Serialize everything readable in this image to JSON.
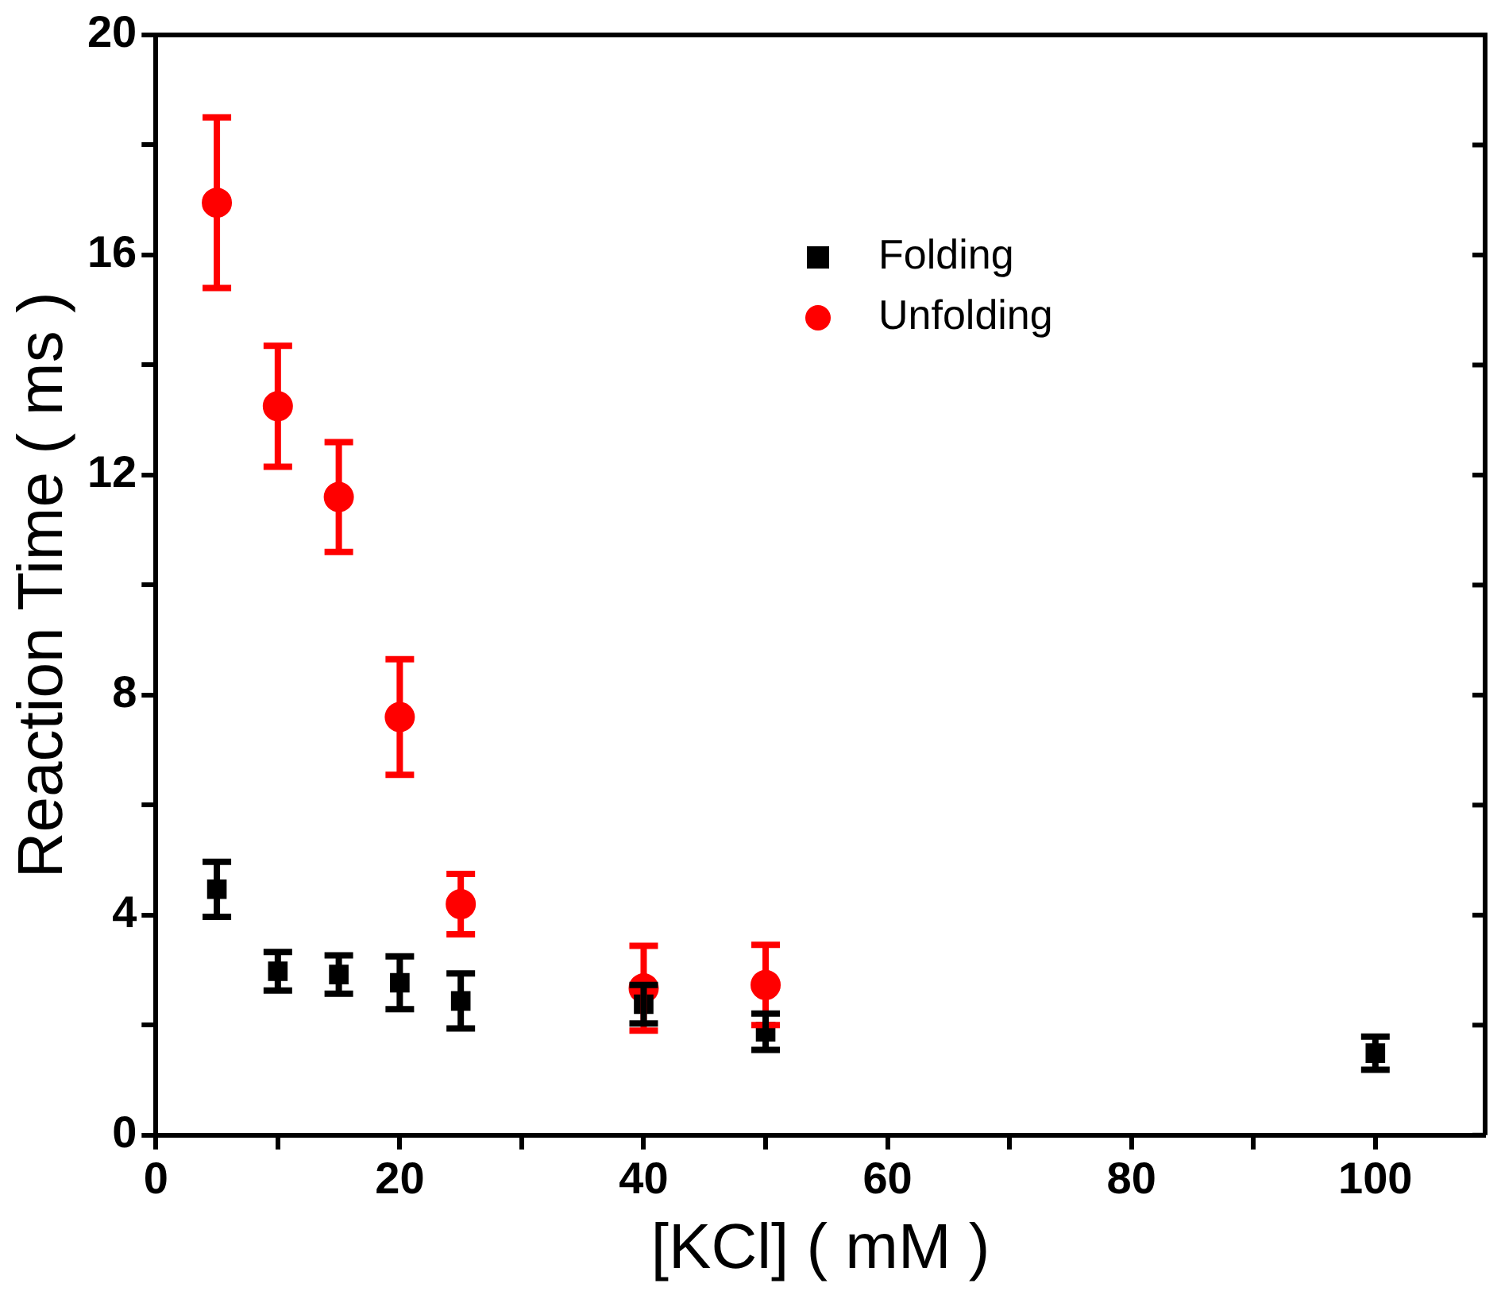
{
  "chart_data": {
    "type": "scatter",
    "xlabel": "[KCl] ( mM )",
    "ylabel": "Reaction Time ( ms )",
    "xlim": [
      0,
      109
    ],
    "xticks": [
      0,
      {
        "value": 10,
        "label": null
      },
      20,
      {
        "value": 30,
        "label": null
      },
      40,
      {
        "value": 50,
        "label": null
      },
      60,
      {
        "value": 70,
        "label": null
      },
      80,
      {
        "value": 90,
        "label": null
      },
      100
    ],
    "ylim": [
      0,
      20
    ],
    "yticks": [
      0,
      {
        "value": 2,
        "label": null
      },
      4,
      {
        "value": 6,
        "label": null
      },
      8,
      {
        "value": 10,
        "label": null
      },
      12,
      {
        "value": 14,
        "label": null
      },
      16,
      {
        "value": 18,
        "label": null
      },
      20
    ],
    "legend": "top right",
    "grid": false,
    "series": [
      {
        "name": "Folding",
        "color": "#000000",
        "marker": "square",
        "x": [
          5,
          10,
          15,
          20,
          25,
          40,
          50,
          100
        ],
        "values": [
          4.47,
          2.98,
          2.92,
          2.77,
          2.44,
          2.38,
          1.88,
          1.49
        ],
        "errors": [
          0.5,
          0.35,
          0.35,
          0.48,
          0.5,
          0.35,
          0.33,
          0.3
        ]
      },
      {
        "name": "Unfolding",
        "color": "#ff0000",
        "marker": "circle",
        "x": [
          5,
          10,
          15,
          20,
          25,
          40,
          50
        ],
        "values": [
          16.95,
          13.25,
          11.6,
          7.6,
          4.2,
          2.67,
          2.73
        ],
        "errors": [
          1.55,
          1.1,
          1.0,
          1.05,
          0.55,
          0.77,
          0.73
        ]
      }
    ]
  }
}
